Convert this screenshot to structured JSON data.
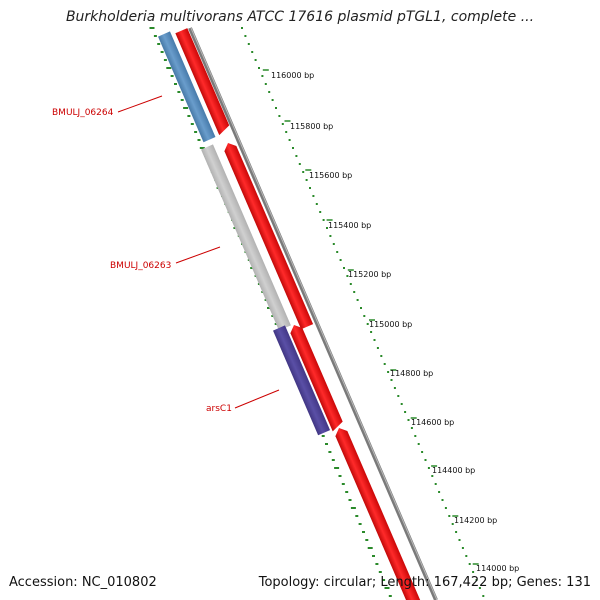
{
  "title": "Burkholderia multivorans ATCC 17616 plasmid pTGL1, complete ...",
  "footer": {
    "accession": "Accession: NC_010802",
    "summary": "Topology: circular; Length: 167,422 bp; Genes: 131"
  },
  "colors": {
    "ruler": "#2a8a2a",
    "backbone": "#808080",
    "forward_feature": "#ee0000",
    "gene_blue": "#4f86b8",
    "gene_gray": "#bdbdbd",
    "gene_purple": "#4b3f93",
    "label_red": "#cc0000"
  },
  "ruler": {
    "ticks": [
      "116000 bp",
      "115800 bp",
      "115600 bp",
      "115400 bp",
      "115200 bp",
      "115000 bp",
      "114800 bp",
      "114600 bp",
      "114400 bp",
      "114200 bp",
      "114000 bp"
    ]
  },
  "genes": [
    {
      "label": "BMULJ_06264",
      "color": "#4f86b8"
    },
    {
      "label": "BMULJ_06263",
      "color": "#bdbdbd"
    },
    {
      "label": "arsC1",
      "color": "#4b3f93"
    }
  ]
}
